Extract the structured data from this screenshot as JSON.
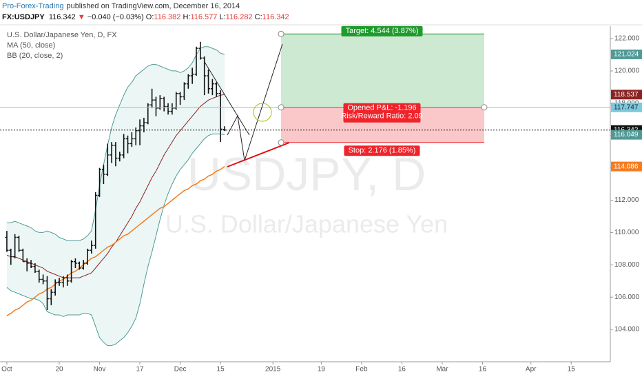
{
  "header": {
    "author": "Pro-Forex-Trading",
    "published": "published on TradingView.com, December 16, 2014",
    "symbol": "FX:USDJPY",
    "arrow": "▼",
    "change": "−0.040 (−0.03%)",
    "open_prefix": "O:",
    "high_prefix": "H:",
    "low_prefix": "L:",
    "close_prefix": "C:"
  },
  "chart_data": {
    "type": "ohlc",
    "title": "U.S. Dollar/Japanese Yen, D, FX",
    "watermark": "USDJPY, D",
    "watermark_subtitle": "U.S. Dollar/Japanese Yen",
    "bar_color": "#111111",
    "open": [
      109.7,
      108.9,
      108.5,
      109.7,
      108.9,
      108.2,
      108.1,
      107.9,
      107.6,
      107.1,
      107.0,
      105.9,
      106.3,
      106.9,
      106.9,
      107.2,
      107.0,
      108.2,
      108.1,
      107.8,
      108.1,
      108.9,
      109.2,
      112.3,
      113.9,
      113.6,
      114.8,
      115.4,
      114.6,
      114.8,
      115.8,
      115.5,
      115.8,
      116.3,
      116.6,
      116.8,
      117.9,
      118.2,
      117.7,
      118.3,
      117.8,
      117.5,
      117.7,
      118.6,
      118.4,
      119.2,
      119.7,
      119.8,
      121.4,
      120.8,
      119.7,
      118.9,
      119.2,
      118.6,
      116.382
    ],
    "high": [
      110.1,
      109.0,
      109.9,
      109.8,
      109.0,
      108.4,
      108.3,
      108.1,
      107.7,
      107.4,
      107.3,
      106.5,
      107.1,
      107.2,
      107.3,
      107.4,
      108.3,
      108.4,
      108.2,
      108.3,
      109.0,
      109.5,
      112.5,
      114.0,
      114.2,
      115.5,
      115.6,
      115.6,
      115.0,
      116.1,
      116.0,
      116.2,
      116.5,
      117.0,
      117.1,
      118.0,
      118.9,
      118.4,
      118.5,
      118.4,
      118.0,
      118.0,
      118.7,
      118.7,
      119.3,
      119.8,
      120.2,
      121.5,
      121.8,
      120.9,
      120.1,
      119.5,
      119.3,
      118.8,
      116.577
    ],
    "low": [
      108.8,
      108.0,
      108.4,
      108.8,
      108.2,
      107.6,
      107.8,
      107.5,
      106.9,
      106.8,
      105.2,
      105.5,
      106.1,
      106.7,
      106.6,
      106.7,
      106.9,
      107.8,
      107.7,
      107.7,
      108.0,
      108.7,
      109.0,
      112.2,
      113.0,
      113.5,
      114.3,
      114.1,
      114.4,
      114.6,
      114.9,
      115.3,
      115.4,
      115.4,
      116.2,
      116.7,
      117.7,
      117.2,
      117.6,
      117.5,
      117.3,
      117.3,
      117.6,
      117.9,
      118.2,
      118.9,
      119.2,
      119.7,
      120.7,
      118.5,
      118.6,
      118.5,
      118.4,
      115.6,
      116.282
    ],
    "close": [
      108.9,
      108.5,
      109.7,
      108.9,
      108.2,
      108.1,
      107.9,
      107.6,
      107.1,
      107.0,
      105.9,
      106.3,
      106.9,
      106.9,
      107.2,
      107.0,
      108.2,
      108.1,
      107.8,
      108.1,
      108.9,
      109.2,
      112.3,
      113.9,
      113.6,
      114.8,
      115.4,
      114.6,
      114.8,
      115.8,
      115.5,
      115.8,
      116.3,
      116.6,
      116.8,
      117.9,
      118.2,
      117.7,
      118.3,
      117.8,
      117.5,
      117.7,
      118.6,
      118.4,
      119.2,
      119.7,
      119.8,
      121.4,
      120.8,
      119.7,
      118.9,
      119.2,
      118.6,
      116.4,
      116.342
    ],
    "ma": {
      "label": "MA (50, close)",
      "color": "#f57c1f",
      "values": [
        104.85,
        105.0,
        105.2,
        105.3,
        105.5,
        105.7,
        105.8,
        106.0,
        106.2,
        106.3,
        106.5,
        106.6,
        106.8,
        107.0,
        107.1,
        107.3,
        107.5,
        107.6,
        107.8,
        108.0,
        108.2,
        108.4,
        108.5,
        108.7,
        108.9,
        109.1,
        109.2,
        109.4,
        109.6,
        109.8,
        109.9,
        110.1,
        110.3,
        110.5,
        110.7,
        110.9,
        111.1,
        111.3,
        111.5,
        111.6,
        111.8,
        112.0,
        112.2,
        112.4,
        112.6,
        112.7,
        112.9,
        113.0,
        113.2,
        113.3,
        113.5,
        113.6,
        113.8,
        113.9,
        114.086
      ]
    },
    "bb": {
      "label": "BB (20, close, 2)",
      "band_color": "#4f9a96",
      "basis_color": "#8b2323",
      "fill": "#e6f4f3",
      "upper": [
        110.6,
        110.6,
        110.7,
        110.6,
        110.5,
        110.4,
        110.3,
        110.1,
        110.0,
        110.0,
        110.1,
        110.0,
        109.9,
        109.7,
        109.6,
        109.5,
        109.5,
        109.5,
        109.5,
        109.6,
        109.8,
        110.1,
        111.4,
        112.9,
        114.2,
        115.4,
        116.5,
        117.3,
        117.9,
        118.5,
        119.0,
        119.3,
        119.7,
        119.9,
        120.1,
        120.3,
        120.4,
        120.4,
        120.3,
        120.2,
        120.1,
        120.0,
        120.0,
        119.9,
        120.0,
        120.2,
        120.5,
        121.0,
        121.4,
        121.5,
        121.5,
        121.4,
        121.3,
        121.1,
        121.024
      ],
      "basis": [
        108.6,
        108.5,
        108.5,
        108.4,
        108.3,
        108.2,
        108.1,
        108.0,
        107.9,
        107.8,
        107.6,
        107.5,
        107.4,
        107.3,
        107.2,
        107.2,
        107.2,
        107.2,
        107.2,
        107.3,
        107.4,
        107.5,
        107.8,
        108.1,
        108.4,
        108.7,
        109.1,
        109.4,
        109.8,
        110.2,
        110.6,
        111.0,
        111.5,
        111.9,
        112.4,
        112.9,
        113.4,
        113.8,
        114.3,
        114.8,
        115.2,
        115.6,
        116.0,
        116.3,
        116.6,
        116.9,
        117.2,
        117.5,
        117.8,
        118.0,
        118.2,
        118.3,
        118.4,
        118.5,
        118.537
      ],
      "lower": [
        106.6,
        106.4,
        106.3,
        106.2,
        106.1,
        106.0,
        105.9,
        105.9,
        105.8,
        105.6,
        105.1,
        105.0,
        104.9,
        104.9,
        104.8,
        104.9,
        104.9,
        104.9,
        104.9,
        105.0,
        105.0,
        104.9,
        104.2,
        103.5,
        103.2,
        103.0,
        103.0,
        103.1,
        103.3,
        103.5,
        103.8,
        104.2,
        104.7,
        105.6,
        106.8,
        107.9,
        108.8,
        109.8,
        110.8,
        111.7,
        112.4,
        113.0,
        113.5,
        113.9,
        114.2,
        114.5,
        114.9,
        115.2,
        115.5,
        115.8,
        116.0,
        116.1,
        116.1,
        116.1,
        116.049
      ]
    },
    "position": {
      "entry": 117.747,
      "entry_color": "#7ec8dc",
      "target": {
        "value": 4.544,
        "label": "Target: 4.544 (3.87%)"
      },
      "stop": {
        "value": 2.176,
        "label": "Stop: 2.176 (1.85%)"
      },
      "pnl": "Opened P&L: -1.196",
      "rr": "Risk/Reward Ratio: 2.09",
      "profit_color": "#1f9b2d",
      "loss_color": "#f0232a"
    },
    "ylim": [
      102,
      122.77
    ],
    "yticks": [
      {
        "value": 104,
        "label": "104.000"
      },
      {
        "value": 106,
        "label": "106.000"
      },
      {
        "value": 108,
        "label": "108.000"
      },
      {
        "value": 110,
        "label": "110.000"
      },
      {
        "value": 112,
        "label": "112.000"
      },
      {
        "value": 114,
        "label": "114.000"
      },
      {
        "value": 116,
        "label": "116.000"
      },
      {
        "value": 118,
        "label": "118.000"
      },
      {
        "value": 120,
        "label": "120.000"
      },
      {
        "value": 122,
        "label": "122.000"
      }
    ],
    "xlim": [
      -1.7,
      149.7
    ],
    "xticks": [
      {
        "value": 0,
        "label": "Oct"
      },
      {
        "value": 13,
        "label": "20"
      },
      {
        "value": 23,
        "label": "Nov"
      },
      {
        "value": 33,
        "label": "17"
      },
      {
        "value": 43,
        "label": "Dec"
      },
      {
        "value": 53,
        "label": "15"
      },
      {
        "value": 66,
        "label": "2015"
      },
      {
        "value": 78,
        "label": "19"
      },
      {
        "value": 88,
        "label": "Feb"
      },
      {
        "value": 98,
        "label": "16"
      },
      {
        "value": 108,
        "label": "Mar"
      },
      {
        "value": 118,
        "label": "16"
      },
      {
        "value": 130,
        "label": "Apr"
      },
      {
        "value": 140,
        "label": "15"
      }
    ],
    "grid": false
  }
}
